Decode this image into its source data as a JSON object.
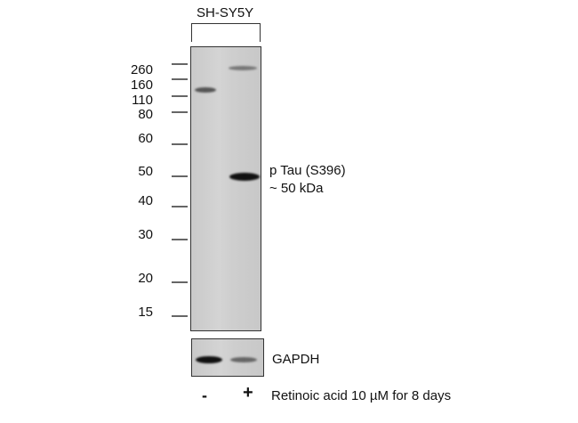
{
  "cell_line": "SH-SY5Y",
  "markers": [
    {
      "label": "260"
    },
    {
      "label": "160"
    },
    {
      "label": "110"
    },
    {
      "label": "80"
    },
    {
      "label": "60"
    },
    {
      "label": "50"
    },
    {
      "label": "40"
    },
    {
      "label": "30"
    },
    {
      "label": "20"
    },
    {
      "label": "15"
    }
  ],
  "target": {
    "name": "p Tau (S396)",
    "size": "~ 50 kDa"
  },
  "loading_control": "GAPDH",
  "lanes": [
    {
      "label": "-"
    },
    {
      "label": "+"
    }
  ],
  "treatment": "Retinoic acid 10 µM for 8 days"
}
